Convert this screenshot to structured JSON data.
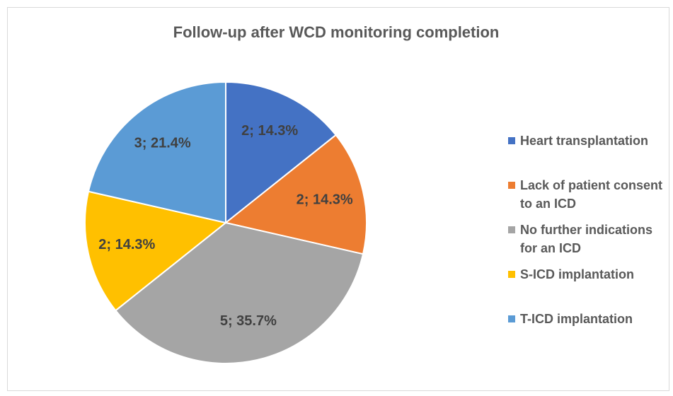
{
  "chart_data": {
    "type": "pie",
    "title": "Follow-up after WCD monitoring completion",
    "categories": [
      "Heart transplantation",
      "Lack of patient consent to an ICD",
      "No further indications for an ICD",
      "S-ICD implantation",
      "T-ICD implantation"
    ],
    "values": [
      2,
      2,
      5,
      2,
      3
    ],
    "value_labels": [
      "2; 14.3%",
      "2; 14.3%",
      "5; 35.7%",
      "2; 14.3%",
      "3; 21.4%"
    ],
    "colors": [
      "#4472c4",
      "#ed7d31",
      "#a5a5a5",
      "#ffc000",
      "#5b9bd5"
    ],
    "legend": "right"
  }
}
